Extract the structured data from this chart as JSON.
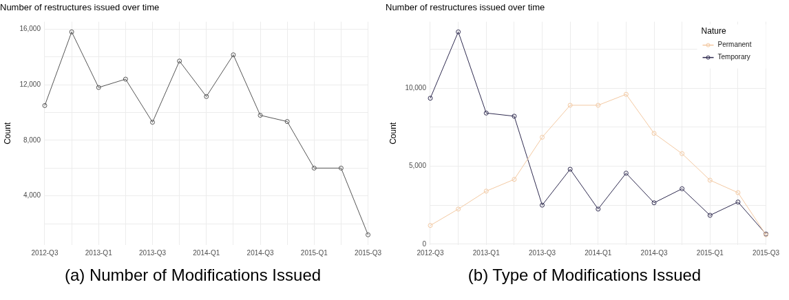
{
  "chart_data": [
    {
      "type": "line",
      "title": "Number of restructures issued over time",
      "ylabel": "Count",
      "annotations": [
        "(a) Number of Modifications Issued"
      ],
      "categories": [
        "2012-Q3",
        null,
        "2013-Q1",
        null,
        "2013-Q3",
        null,
        "2014-Q1",
        null,
        "2014-Q3",
        null,
        "2015-Q1",
        null,
        "2015-Q3"
      ],
      "series": [
        {
          "color": "#555555",
          "values": [
            10500,
            15800,
            11800,
            12400,
            9300,
            13700,
            11150,
            14150,
            9800,
            9350,
            6000,
            6000,
            1200
          ]
        }
      ],
      "ylim": [
        470,
        16530
      ],
      "yticks": [
        {
          "value": 2000,
          "label": null
        },
        {
          "value": 4000,
          "label": "4,000"
        },
        {
          "value": 6000,
          "label": null
        },
        {
          "value": 8000,
          "label": "8,000"
        },
        {
          "value": 10000,
          "label": null
        },
        {
          "value": 12000,
          "label": "12,000"
        },
        {
          "value": 14000,
          "label": null
        },
        {
          "value": 16000,
          "label": "16,000"
        }
      ],
      "grid": true,
      "marker": "circle",
      "line_style": "solid"
    },
    {
      "type": "line",
      "title": "Number of restructures issued over time",
      "ylabel": "Count",
      "legend_title": "Nature",
      "annotations": [
        "(b) Type of Modifications Issued"
      ],
      "categories": [
        "2012-Q3",
        null,
        "2013-Q1",
        null,
        "2013-Q3",
        null,
        "2014-Q1",
        null,
        "2014-Q3",
        null,
        "2015-Q1",
        null,
        "2015-Q3"
      ],
      "series": [
        {
          "name": "Permanent",
          "color": "#f3c9a2",
          "values": [
            1200,
            2250,
            3400,
            4150,
            6850,
            8900,
            8900,
            9600,
            7100,
            5800,
            4100,
            3300,
            600
          ]
        },
        {
          "name": "Temporary",
          "color": "#2e2a4f",
          "values": [
            9350,
            13600,
            8400,
            8200,
            2500,
            4800,
            2250,
            4550,
            2650,
            3550,
            1850,
            2700,
            650
          ]
        }
      ],
      "ylim": [
        -50,
        14250
      ],
      "yticks": [
        0,
        {
          "value": 2500,
          "label": null
        },
        {
          "value": 5000,
          "label": "5,000"
        },
        {
          "value": 7500,
          "label": null
        },
        {
          "value": 10000,
          "label": "10,000"
        },
        {
          "value": 12500,
          "label": null
        }
      ],
      "grid": true,
      "legend": "top right",
      "marker": "circle",
      "line_style": "solid"
    }
  ]
}
